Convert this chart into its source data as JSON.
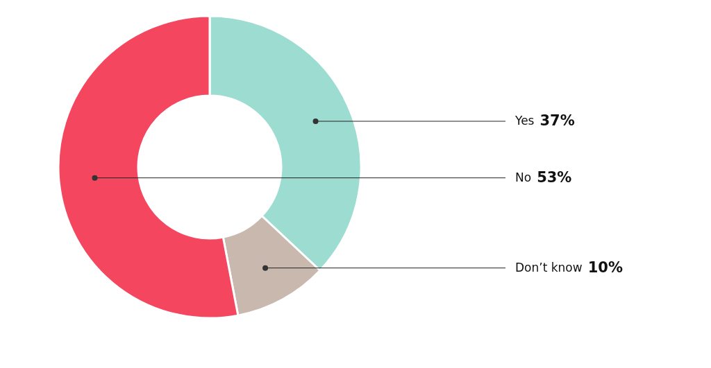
{
  "chart_data": {
    "type": "donut",
    "categories": [
      "Yes",
      "Don’t know",
      "No"
    ],
    "values": [
      37,
      10,
      53
    ],
    "colors": [
      "#9ddcd0",
      "#c8b8ad",
      "#f4475f"
    ],
    "value_labels": [
      "37%",
      "10%",
      "53%"
    ]
  }
}
